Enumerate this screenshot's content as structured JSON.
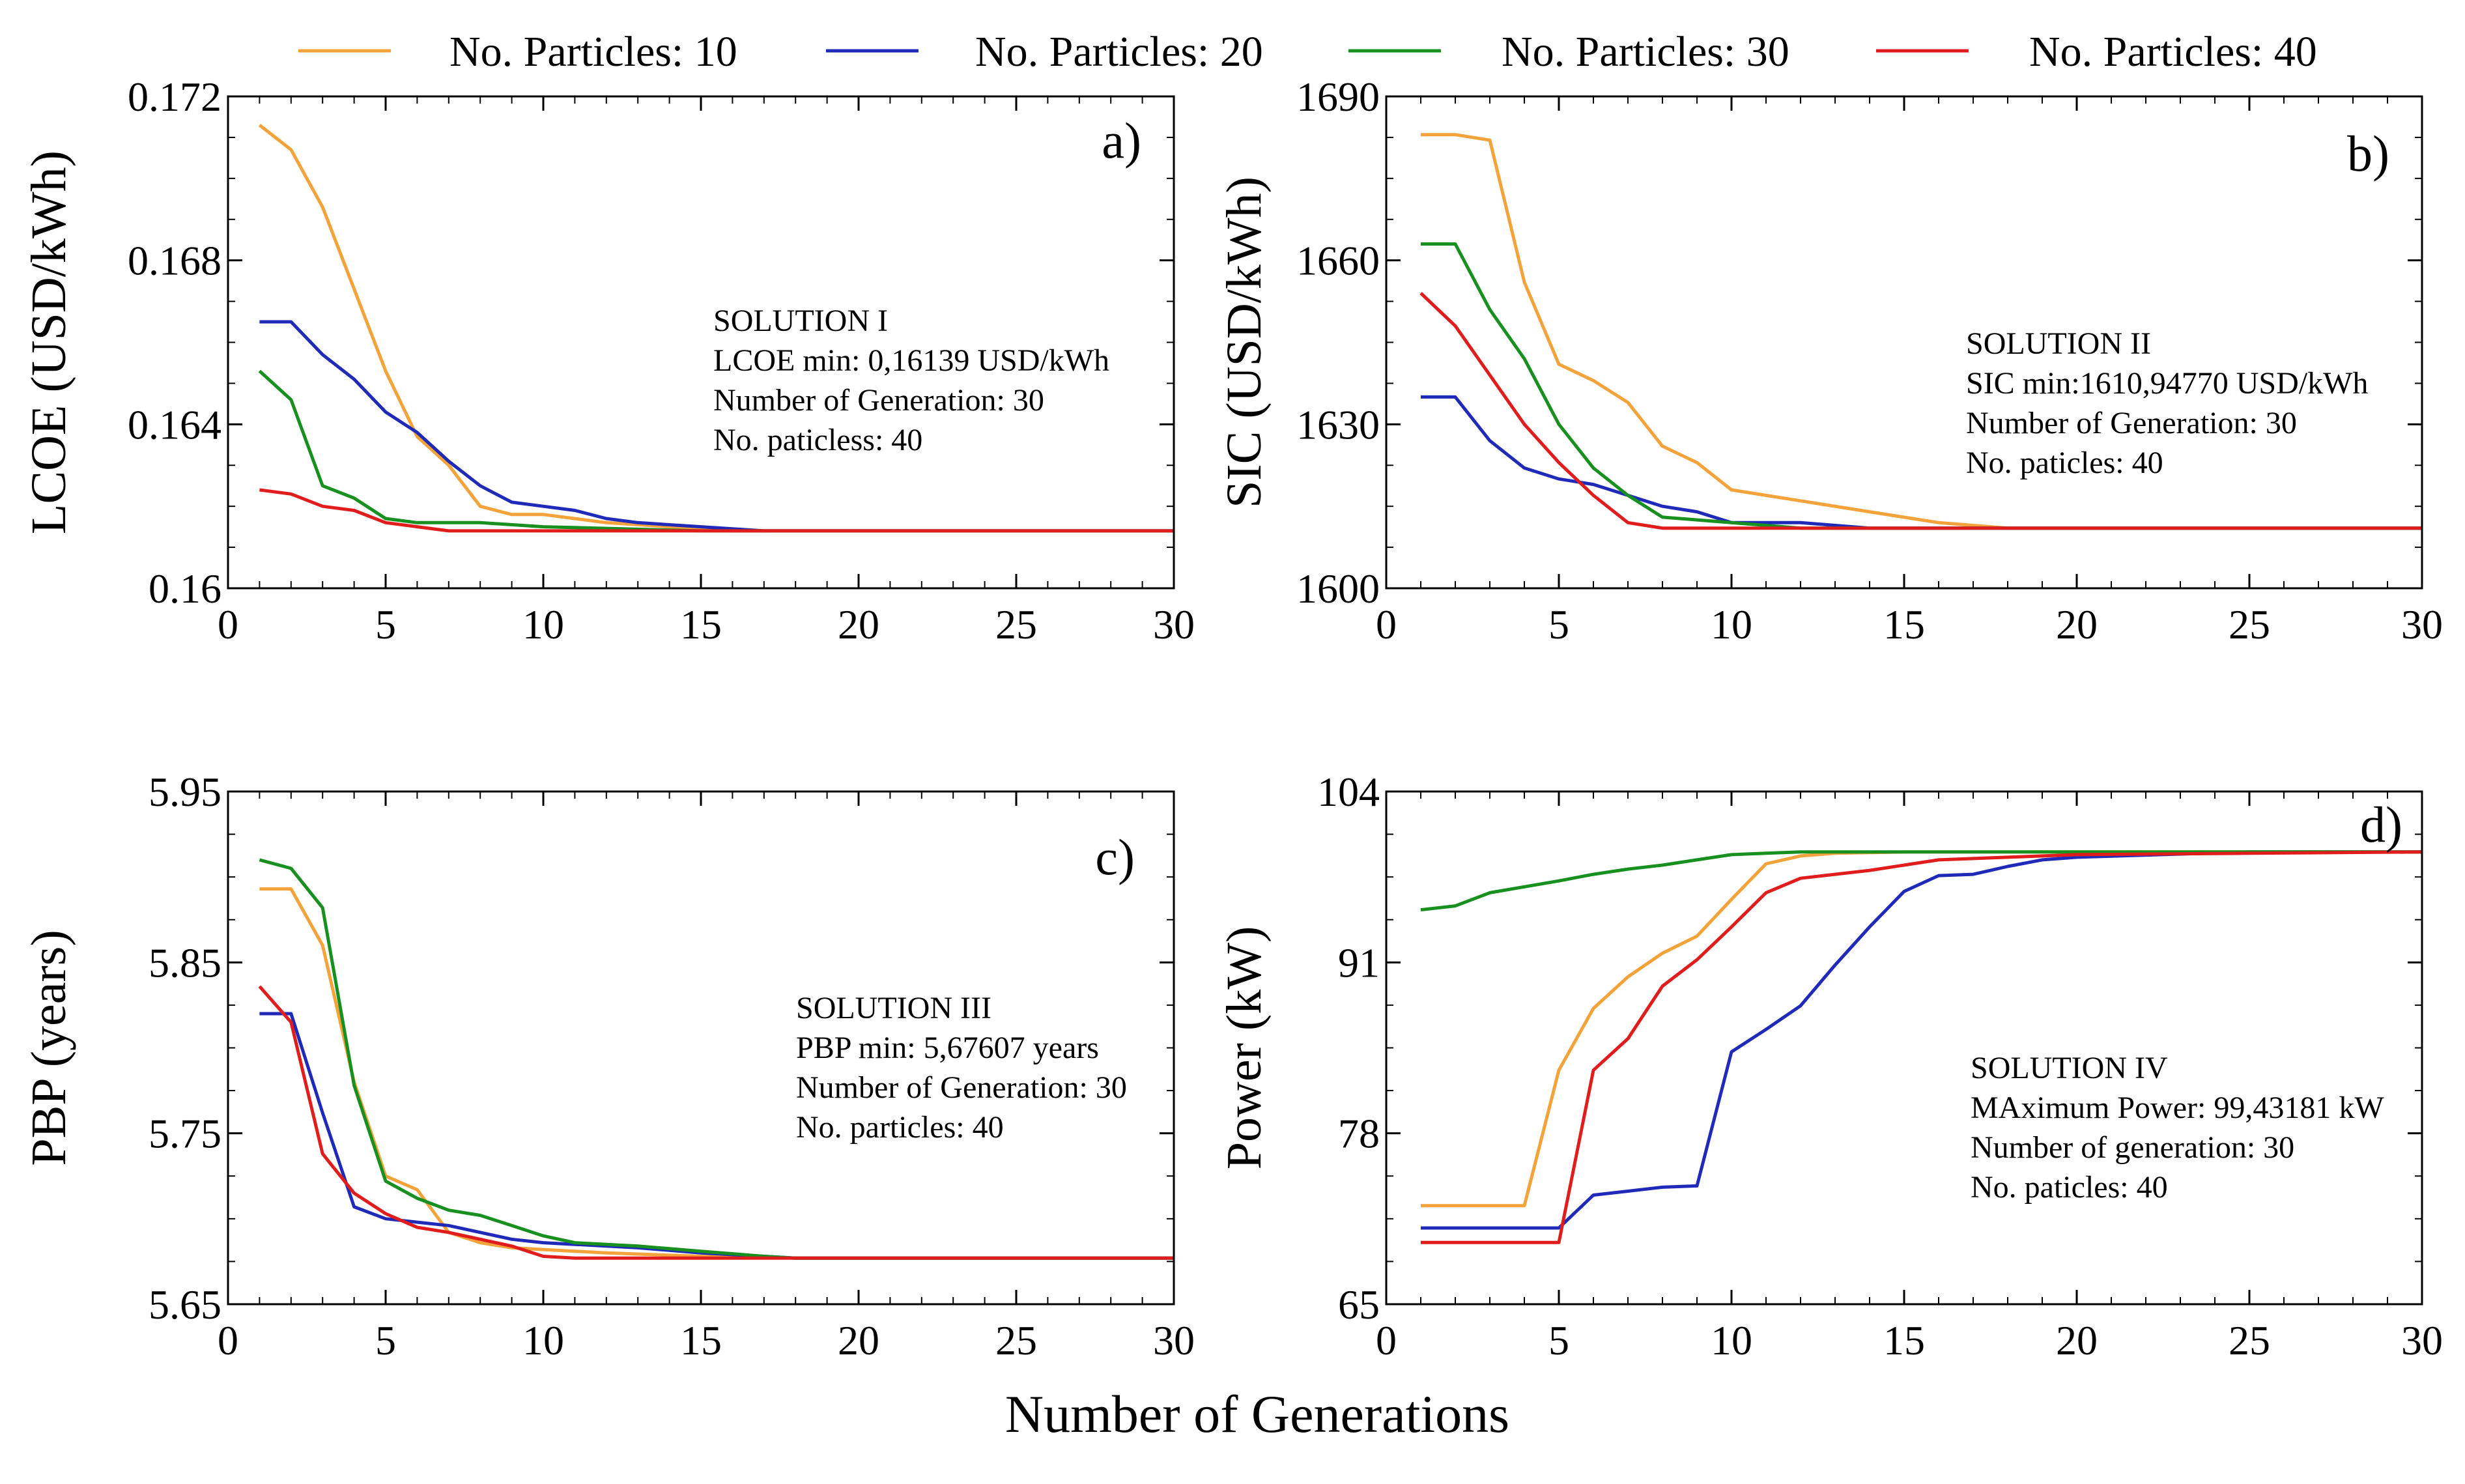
{
  "figure": {
    "xlabel": "Number of Generations"
  },
  "legend": [
    {
      "label": "No. Particles: 10",
      "color": "#f4a23a"
    },
    {
      "label": "No. Particles: 20",
      "color": "#1f2bb8"
    },
    {
      "label": "No. Particles: 30",
      "color": "#17901f"
    },
    {
      "label": "No. Particles: 40",
      "color": "#e01c1c"
    }
  ],
  "chart_data": [
    {
      "id": "a",
      "type": "line",
      "panel_label": "a)",
      "ylabel": "LCOE (USD/kWh)",
      "xlabel": "",
      "xlim": [
        0,
        30
      ],
      "ylim": [
        0.16,
        0.172
      ],
      "xticks": [
        0,
        5,
        10,
        15,
        20,
        25,
        30
      ],
      "xtick_labels": [
        "0",
        "5",
        "10",
        "15",
        "20",
        "25",
        "30"
      ],
      "yticks": [
        0.16,
        0.164,
        0.168,
        0.172
      ],
      "ytick_labels": [
        "0.16",
        "0.164",
        "0.168",
        "0.172"
      ],
      "annotation": [
        "SOLUTION I",
        "LCOE min: 0,16139 USD/kWh",
        "Number of Generation: 30",
        "No. paticless: 40"
      ],
      "series": [
        {
          "name": "No. Particles: 10",
          "x": [
            1,
            2,
            3,
            4,
            5,
            6,
            7,
            8,
            9,
            10,
            12,
            14,
            16,
            18,
            20,
            25,
            30
          ],
          "y": [
            0.1713,
            0.1707,
            0.1693,
            0.1673,
            0.1653,
            0.1637,
            0.163,
            0.162,
            0.1618,
            0.1618,
            0.1616,
            0.1615,
            0.1614,
            0.1614,
            0.1614,
            0.1614,
            0.1614
          ]
        },
        {
          "name": "No. Particles: 20",
          "x": [
            1,
            2,
            3,
            4,
            5,
            6,
            7,
            8,
            9,
            10,
            11,
            12,
            13,
            15,
            17,
            20,
            25,
            30
          ],
          "y": [
            0.1665,
            0.1665,
            0.1657,
            0.1651,
            0.1643,
            0.1638,
            0.1631,
            0.1625,
            0.1621,
            0.162,
            0.1619,
            0.1617,
            0.1616,
            0.1615,
            0.1614,
            0.1614,
            0.1614,
            0.1614
          ]
        },
        {
          "name": "No. Particles: 30",
          "x": [
            1,
            2,
            3,
            4,
            5,
            6,
            8,
            10,
            15,
            20,
            25,
            30
          ],
          "y": [
            0.1653,
            0.1646,
            0.1625,
            0.1622,
            0.1617,
            0.1616,
            0.1616,
            0.1615,
            0.1614,
            0.1614,
            0.1614,
            0.1614
          ]
        },
        {
          "name": "No. Particles: 40",
          "x": [
            1,
            2,
            3,
            4,
            5,
            6,
            7,
            10,
            15,
            20,
            25,
            30
          ],
          "y": [
            0.1624,
            0.1623,
            0.162,
            0.1619,
            0.1616,
            0.1615,
            0.1614,
            0.1614,
            0.1614,
            0.1614,
            0.1614,
            0.1614
          ]
        }
      ]
    },
    {
      "id": "b",
      "type": "line",
      "panel_label": "b)",
      "ylabel": "SIC (USD/kWh)",
      "xlabel": "",
      "xlim": [
        0,
        30
      ],
      "ylim": [
        1600,
        1690
      ],
      "xticks": [
        0,
        5,
        10,
        15,
        20,
        25,
        30
      ],
      "xtick_labels": [
        "0",
        "5",
        "10",
        "15",
        "20",
        "25",
        "30"
      ],
      "yticks": [
        1600,
        1630,
        1660,
        1690
      ],
      "ytick_labels": [
        "1600",
        "1630",
        "1660",
        "1690"
      ],
      "annotation": [
        "SOLUTION II",
        "SIC min:1610,94770 USD/kWh",
        "Number of Generation: 30",
        "No. paticles: 40"
      ],
      "series": [
        {
          "name": "No. Particles: 10",
          "x": [
            1,
            2,
            3,
            4,
            5,
            6,
            7,
            8,
            9,
            10,
            12,
            14,
            16,
            18,
            20,
            25,
            30
          ],
          "y": [
            1683,
            1683,
            1682,
            1656,
            1641,
            1638,
            1634,
            1626,
            1623,
            1618,
            1616,
            1614,
            1612,
            1611,
            1611,
            1611,
            1611
          ]
        },
        {
          "name": "No. Particles: 20",
          "x": [
            1,
            2,
            3,
            4,
            5,
            6,
            7,
            8,
            9,
            10,
            12,
            14,
            16,
            18,
            20,
            25,
            30
          ],
          "y": [
            1635,
            1635,
            1627,
            1622,
            1620,
            1619,
            1617,
            1615,
            1614,
            1612,
            1612,
            1611,
            1611,
            1611,
            1611,
            1611,
            1611
          ]
        },
        {
          "name": "No. Particles: 30",
          "x": [
            1,
            2,
            3,
            4,
            5,
            6,
            7,
            8,
            10,
            12,
            15,
            20,
            25,
            30
          ],
          "y": [
            1663,
            1663,
            1651,
            1642,
            1630,
            1622,
            1617,
            1613,
            1612,
            1611,
            1611,
            1611,
            1611,
            1611
          ]
        },
        {
          "name": "No. Particles: 40",
          "x": [
            1,
            2,
            3,
            4,
            5,
            6,
            7,
            8,
            10,
            15,
            20,
            25,
            30
          ],
          "y": [
            1654,
            1648,
            1639,
            1630,
            1623,
            1617,
            1612,
            1611,
            1611,
            1611,
            1611,
            1611,
            1611
          ]
        }
      ]
    },
    {
      "id": "c",
      "type": "line",
      "panel_label": "c)",
      "ylabel": "PBP (years)",
      "xlabel": "",
      "xlim": [
        0,
        30
      ],
      "ylim": [
        5.65,
        5.95
      ],
      "xticks": [
        0,
        5,
        10,
        15,
        20,
        25,
        30
      ],
      "xtick_labels": [
        "0",
        "5",
        "10",
        "15",
        "20",
        "25",
        "30"
      ],
      "yticks": [
        5.65,
        5.75,
        5.85,
        5.95
      ],
      "ytick_labels": [
        "5.65",
        "5.75",
        "5.85",
        "5.95"
      ],
      "annotation": [
        "SOLUTION III",
        "PBP min: 5,67607 years",
        "Number of Generation: 30",
        "No. particles: 40"
      ],
      "series": [
        {
          "name": "No. Particles: 10",
          "x": [
            1,
            2,
            3,
            4,
            5,
            6,
            7,
            8,
            9,
            10,
            12,
            15,
            18,
            20,
            25,
            30
          ],
          "y": [
            5.893,
            5.893,
            5.86,
            5.78,
            5.725,
            5.717,
            5.692,
            5.686,
            5.683,
            5.682,
            5.68,
            5.678,
            5.677,
            5.677,
            5.677,
            5.677
          ]
        },
        {
          "name": "No. Particles: 20",
          "x": [
            1,
            2,
            3,
            4,
            5,
            6,
            7,
            8,
            9,
            10,
            11,
            13,
            15,
            17,
            18,
            20,
            25,
            30
          ],
          "y": [
            5.82,
            5.82,
            5.762,
            5.707,
            5.7,
            5.698,
            5.696,
            5.692,
            5.688,
            5.686,
            5.685,
            5.683,
            5.68,
            5.678,
            5.677,
            5.677,
            5.677,
            5.677
          ]
        },
        {
          "name": "No. Particles: 30",
          "x": [
            1,
            2,
            3,
            4,
            5,
            6,
            7,
            8,
            9,
            10,
            11,
            13,
            15,
            17,
            18,
            20,
            25,
            30
          ],
          "y": [
            5.91,
            5.905,
            5.882,
            5.778,
            5.722,
            5.712,
            5.705,
            5.702,
            5.696,
            5.69,
            5.686,
            5.684,
            5.681,
            5.678,
            5.677,
            5.677,
            5.677,
            5.677
          ]
        },
        {
          "name": "No. Particles: 40",
          "x": [
            1,
            2,
            3,
            4,
            5,
            6,
            7,
            8,
            9,
            10,
            11,
            15,
            20,
            25,
            30
          ],
          "y": [
            5.836,
            5.815,
            5.738,
            5.715,
            5.703,
            5.695,
            5.692,
            5.688,
            5.684,
            5.678,
            5.677,
            5.677,
            5.677,
            5.677,
            5.677
          ]
        }
      ]
    },
    {
      "id": "d",
      "type": "line",
      "panel_label": "d)",
      "ylabel": "Power (kW)",
      "xlabel": "",
      "xlim": [
        0,
        30
      ],
      "ylim": [
        65,
        104
      ],
      "xticks": [
        0,
        5,
        10,
        15,
        20,
        25,
        30
      ],
      "xtick_labels": [
        "0",
        "5",
        "10",
        "15",
        "20",
        "25",
        "30"
      ],
      "yticks": [
        65,
        78,
        91,
        104
      ],
      "ytick_labels": [
        "65",
        "78",
        "91",
        "104"
      ],
      "annotation": [
        "SOLUTION IV",
        "MAximum Power: 99,43181 kW",
        "Number of generation: 30",
        "No. paticles: 40"
      ],
      "series": [
        {
          "name": "No. Particles: 10",
          "x": [
            1,
            2,
            3,
            4,
            5,
            6,
            7,
            8,
            9,
            10,
            11,
            12,
            13,
            15,
            20,
            25,
            30
          ],
          "y": [
            72.5,
            72.5,
            72.5,
            72.5,
            82.8,
            87.5,
            89.9,
            91.7,
            93.0,
            95.8,
            98.5,
            99.1,
            99.3,
            99.4,
            99.4,
            99.4,
            99.4
          ]
        },
        {
          "name": "No. Particles: 20",
          "x": [
            1,
            2,
            3,
            4,
            5,
            6,
            7,
            8,
            9,
            10,
            11,
            12,
            13,
            14,
            15,
            16,
            17,
            18,
            19,
            20,
            25,
            30
          ],
          "y": [
            70.8,
            70.8,
            70.8,
            70.8,
            70.8,
            73.3,
            73.6,
            73.9,
            74.0,
            84.2,
            85.9,
            87.7,
            90.8,
            93.7,
            96.4,
            97.6,
            97.7,
            98.3,
            98.8,
            99.0,
            99.4,
            99.4
          ]
        },
        {
          "name": "No. Particles: 30",
          "x": [
            1,
            2,
            3,
            5,
            6,
            7,
            8,
            9,
            10,
            11,
            12,
            15,
            20,
            25,
            30
          ],
          "y": [
            95.0,
            95.3,
            96.3,
            97.2,
            97.7,
            98.1,
            98.4,
            98.8,
            99.2,
            99.3,
            99.4,
            99.4,
            99.4,
            99.4,
            99.4
          ]
        },
        {
          "name": "No. Particles: 40",
          "x": [
            1,
            2,
            3,
            4,
            5,
            6,
            7,
            8,
            9,
            10,
            11,
            12,
            13,
            14,
            15,
            16,
            17,
            18,
            20,
            25,
            30
          ],
          "y": [
            69.7,
            69.7,
            69.7,
            69.7,
            69.7,
            82.8,
            85.2,
            89.2,
            91.2,
            93.7,
            96.3,
            97.4,
            97.7,
            98.0,
            98.4,
            98.8,
            98.9,
            99.0,
            99.2,
            99.3,
            99.4
          ]
        }
      ]
    }
  ]
}
